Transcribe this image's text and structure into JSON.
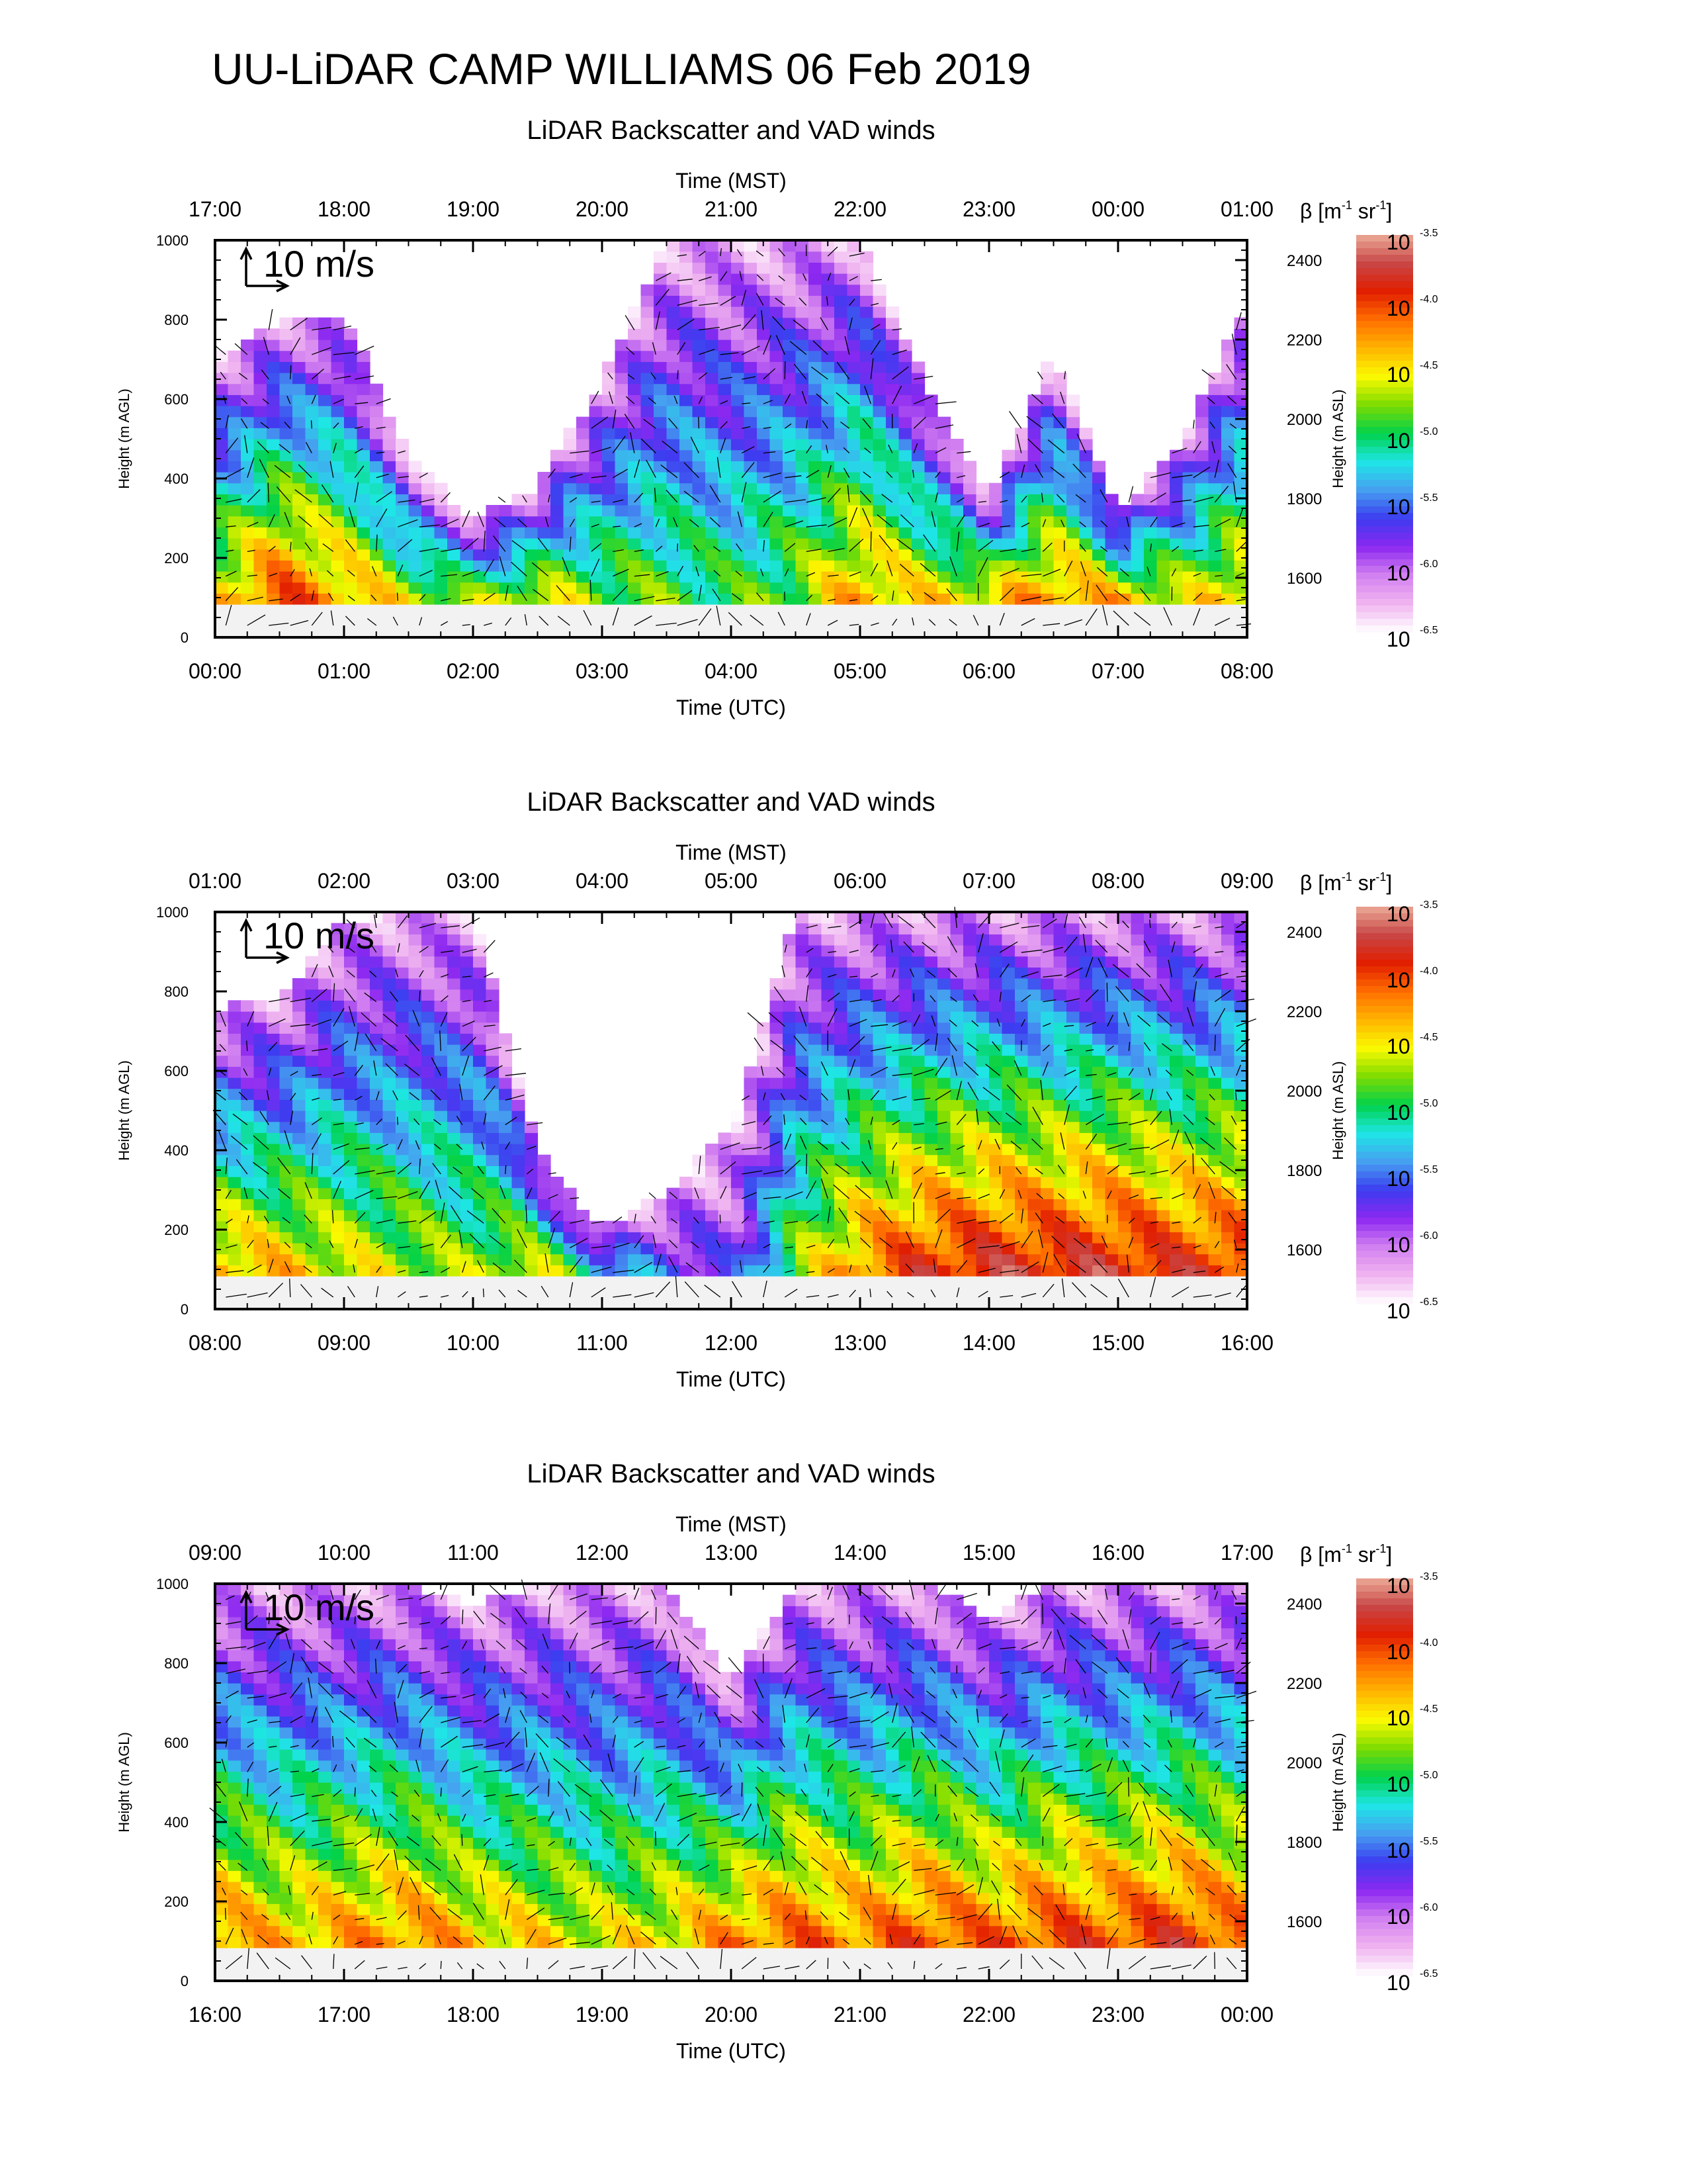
{
  "page_title": "UU-LiDAR CAMP WILLIAMS 06 Feb 2019",
  "colors": {
    "colormap": [
      "#ffffff",
      "#f0b4f0",
      "#d280f0",
      "#8c28f0",
      "#3c3cf0",
      "#46a0f0",
      "#1ee6e6",
      "#00d24b",
      "#7ddc00",
      "#fafa00",
      "#ffb400",
      "#ff6e00",
      "#e11e00",
      "#c84646",
      "#ebaa96"
    ],
    "axes": "#000000",
    "vectors": "#000000"
  },
  "chart_data": [
    {
      "type": "heatmap",
      "title": "LiDAR Backscatter and VAD winds",
      "xlabel": "Time (UTC)",
      "x2label": "Time (MST)",
      "ylabel": "Height (m AGL)",
      "y2label": "Height (m ASL)",
      "x_ticks": [
        "00:00",
        "01:00",
        "02:00",
        "03:00",
        "04:00",
        "05:00",
        "06:00",
        "07:00",
        "08:00"
      ],
      "x2_ticks": [
        "17:00",
        "18:00",
        "19:00",
        "20:00",
        "21:00",
        "22:00",
        "23:00",
        "00:00",
        "01:00"
      ],
      "y_ticks": [
        0,
        200,
        400,
        600,
        800,
        1000
      ],
      "y2_ticks": [
        1600,
        1800,
        2000,
        2200,
        2400
      ],
      "ylim": [
        0,
        1000
      ],
      "y2lim": [
        1450,
        2450
      ],
      "colorbar": {
        "label_base": "β [m",
        "label_exp1": "-1",
        "label_mid": " sr",
        "label_exp2": "-1",
        "label_end": "]",
        "tick_base": "10",
        "ticks": [
          "-3.5",
          "-4.0",
          "-4.5",
          "-5.0",
          "-5.5",
          "-6.0",
          "-6.5"
        ]
      },
      "vector_scale": "10 m/s",
      "x_hours": [
        0,
        0.5,
        1,
        1.5,
        2,
        2.5,
        3,
        3.5,
        4,
        4.5,
        5,
        5.5,
        6,
        6.5,
        7,
        7.5,
        8
      ],
      "log_beta_near_ground": [
        -4.5,
        -4.0,
        -4.3,
        -4.6,
        -4.7,
        -4.5,
        -4.8,
        -4.9,
        -5.0,
        -4.8,
        -4.3,
        -4.5,
        -4.4,
        -4.2,
        -4.3,
        -4.6,
        -4.4
      ],
      "top_height_m": [
        700,
        800,
        820,
        450,
        300,
        380,
        650,
        1000,
        1000,
        1000,
        1000,
        650,
        350,
        720,
        320,
        500,
        850
      ]
    },
    {
      "type": "heatmap",
      "title": "LiDAR Backscatter and VAD winds",
      "xlabel": "Time (UTC)",
      "x2label": "Time (MST)",
      "ylabel": "Height (m AGL)",
      "y2label": "Height (m ASL)",
      "x_ticks": [
        "08:00",
        "09:00",
        "10:00",
        "11:00",
        "12:00",
        "13:00",
        "14:00",
        "15:00",
        "16:00"
      ],
      "x2_ticks": [
        "01:00",
        "02:00",
        "03:00",
        "04:00",
        "05:00",
        "06:00",
        "07:00",
        "08:00",
        "09:00"
      ],
      "y_ticks": [
        0,
        200,
        400,
        600,
        800,
        1000
      ],
      "y2_ticks": [
        1600,
        1800,
        2000,
        2200,
        2400
      ],
      "ylim": [
        0,
        1000
      ],
      "y2lim": [
        1450,
        2450
      ],
      "colorbar": {
        "label_base": "β [m",
        "label_exp1": "-1",
        "label_mid": " sr",
        "label_exp2": "-1",
        "label_end": "]",
        "tick_base": "10",
        "ticks": [
          "-3.5",
          "-4.0",
          "-4.5",
          "-5.0",
          "-5.5",
          "-6.0",
          "-6.5"
        ]
      },
      "vector_scale": "10 m/s",
      "x_hours": [
        0,
        0.5,
        1,
        1.5,
        2,
        2.5,
        3,
        3.5,
        4,
        4.5,
        5,
        5.5,
        6,
        6.5,
        7,
        7.5,
        8
      ],
      "log_beta_near_ground": [
        -4.3,
        -4.4,
        -4.6,
        -4.7,
        -4.8,
        -4.5,
        -5.2,
        -5.6,
        -5.9,
        -4.8,
        -4.2,
        -3.9,
        -3.8,
        -3.8,
        -3.8,
        -3.9,
        -3.9
      ],
      "top_height_m": [
        760,
        780,
        980,
        1000,
        1000,
        400,
        200,
        300,
        450,
        1000,
        1000,
        1000,
        1000,
        1000,
        1000,
        1000,
        1000
      ]
    },
    {
      "type": "heatmap",
      "title": "LiDAR Backscatter and VAD winds",
      "xlabel": "Time (UTC)",
      "x2label": "Time (MST)",
      "ylabel": "Height (m AGL)",
      "y2label": "Height (m ASL)",
      "x_ticks": [
        "16:00",
        "17:00",
        "18:00",
        "19:00",
        "20:00",
        "21:00",
        "22:00",
        "23:00",
        "00:00"
      ],
      "x2_ticks": [
        "09:00",
        "10:00",
        "11:00",
        "12:00",
        "13:00",
        "14:00",
        "15:00",
        "16:00",
        "17:00"
      ],
      "y_ticks": [
        0,
        200,
        400,
        600,
        800,
        1000
      ],
      "y2_ticks": [
        1600,
        1800,
        2000,
        2200,
        2400
      ],
      "ylim": [
        0,
        1000
      ],
      "y2lim": [
        1450,
        2450
      ],
      "colorbar": {
        "label_base": "β [m",
        "label_exp1": "-1",
        "label_mid": " sr",
        "label_exp2": "-1",
        "label_end": "]",
        "tick_base": "10",
        "ticks": [
          "-3.5",
          "-4.0",
          "-4.5",
          "-5.0",
          "-5.5",
          "-6.0",
          "-6.5"
        ]
      },
      "vector_scale": "10 m/s",
      "x_hours": [
        0,
        0.5,
        1,
        1.5,
        2,
        2.5,
        3,
        3.5,
        4,
        4.5,
        5,
        5.5,
        6,
        6.5,
        7,
        7.5,
        8
      ],
      "log_beta_near_ground": [
        -4.2,
        -4.4,
        -4.3,
        -4.2,
        -4.4,
        -4.5,
        -4.6,
        -4.5,
        -4.2,
        -4.1,
        -4.2,
        -4.0,
        -4.1,
        -4.0,
        -4.0,
        -3.9,
        -4.1
      ],
      "top_height_m": [
        1000,
        1000,
        1000,
        1000,
        950,
        1000,
        1000,
        1000,
        750,
        1000,
        1000,
        1000,
        920,
        1000,
        1000,
        1000,
        1000
      ]
    }
  ]
}
